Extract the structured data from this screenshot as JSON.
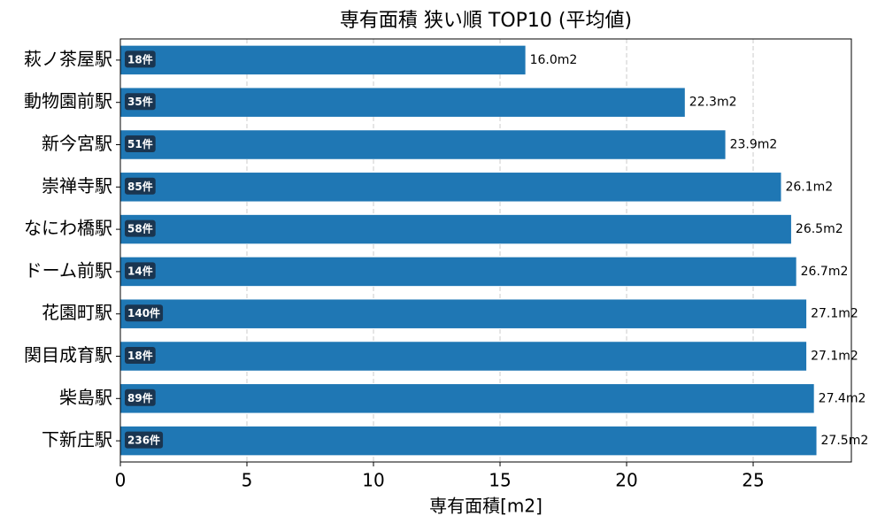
{
  "chart_data": {
    "type": "barh",
    "title": "専有面積 狭い順 TOP10 (平均値)",
    "x_label": "専有面積[m2]",
    "categories": [
      "萩ノ茶屋駅",
      "動物園前駅",
      "新今宮駅",
      "崇禅寺駅",
      "なにわ橋駅",
      "ドーム前駅",
      "花園町駅",
      "関目成育駅",
      "柴島駅",
      "下新庄駅"
    ],
    "values": [
      16.0,
      22.3,
      23.9,
      26.1,
      26.5,
      26.7,
      27.1,
      27.1,
      27.4,
      27.5
    ],
    "value_labels": [
      "16.0m2",
      "22.3m2",
      "23.9m2",
      "26.1m2",
      "26.5m2",
      "26.7m2",
      "27.1m2",
      "27.1m2",
      "27.4m2",
      "27.5m2"
    ],
    "count_labels": [
      "18件",
      "35件",
      "51件",
      "85件",
      "58件",
      "14件",
      "140件",
      "18件",
      "89件",
      "236件"
    ],
    "color": "#1f77b4",
    "xlim": [
      0,
      28.88
    ],
    "xticks": [
      0,
      5,
      10,
      15,
      20,
      25
    ],
    "grid": true
  }
}
